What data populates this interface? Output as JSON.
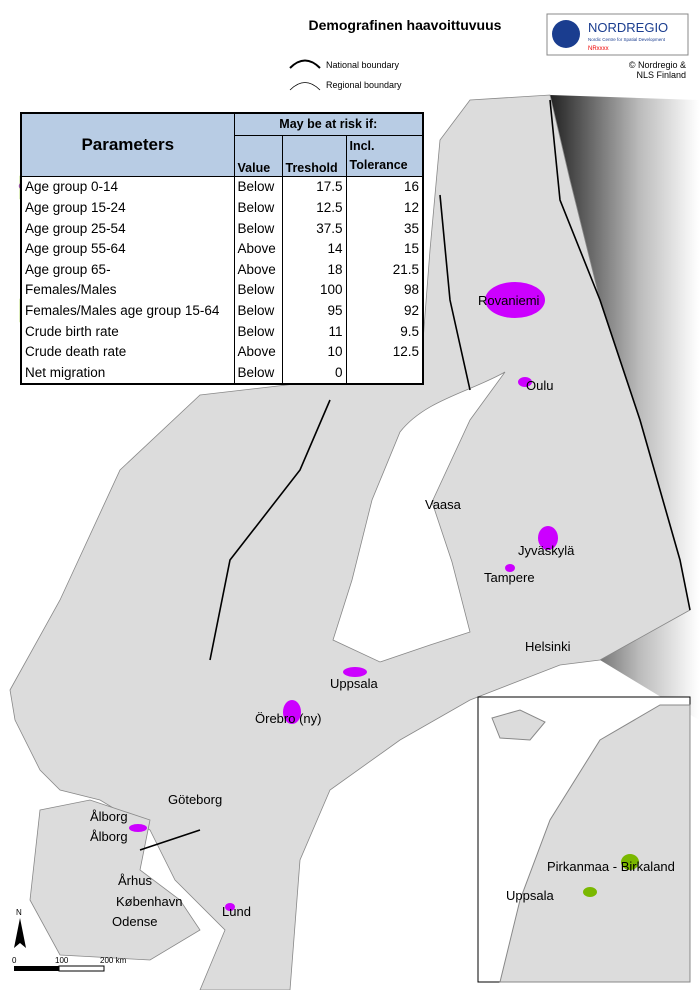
{
  "title": "Demografinen haavoittuvuus",
  "logo": {
    "name": "NORDREGIO",
    "tagline": "Nordic Centre for Spatial Development",
    "code": "NRxxxx"
  },
  "copyright": [
    "© Nordregio &",
    "NLS Finland"
  ],
  "legend": [
    "National boundary",
    "Regional boundary"
  ],
  "table": {
    "header": "Parameters",
    "group": "May be at risk if:",
    "columns": [
      "Value",
      "Treshold",
      "Incl. Tolerance"
    ],
    "rows": [
      [
        "Age group 0-14",
        "Below",
        17.5,
        16
      ],
      [
        "Age group 15-24",
        "Below",
        12.5,
        12
      ],
      [
        "Age group 25-54",
        "Below",
        37.5,
        35
      ],
      [
        "Age group 55-64",
        "Above",
        14,
        15
      ],
      [
        "Age group 65-",
        "Above",
        18,
        21.5
      ],
      [
        "Females/Males",
        "Below",
        100,
        98
      ],
      [
        "Females/Males age group 15-64",
        "Below",
        95,
        92
      ],
      [
        "Crude birth rate",
        "Below",
        11,
        9.5
      ],
      [
        "Crude death rate",
        "Above",
        10,
        12.5
      ],
      [
        "Net migration",
        "Below",
        0
      ]
    ]
  },
  "cities": [
    "Rovaniemi",
    "Oulu",
    "Vaasa",
    "Jyväskylä",
    "Tampere",
    "Helsinki",
    "Uppsala",
    "Örebro (ny)",
    "Göteborg",
    "Ålborg",
    "Ålborg",
    "Århus",
    "København",
    "Odense",
    "Lund"
  ],
  "inset": [
    "Pirkanmaa - Birkaland",
    "Uppsala"
  ],
  "scale": [
    "0",
    "100",
    "200 km"
  ],
  "north": "N"
}
